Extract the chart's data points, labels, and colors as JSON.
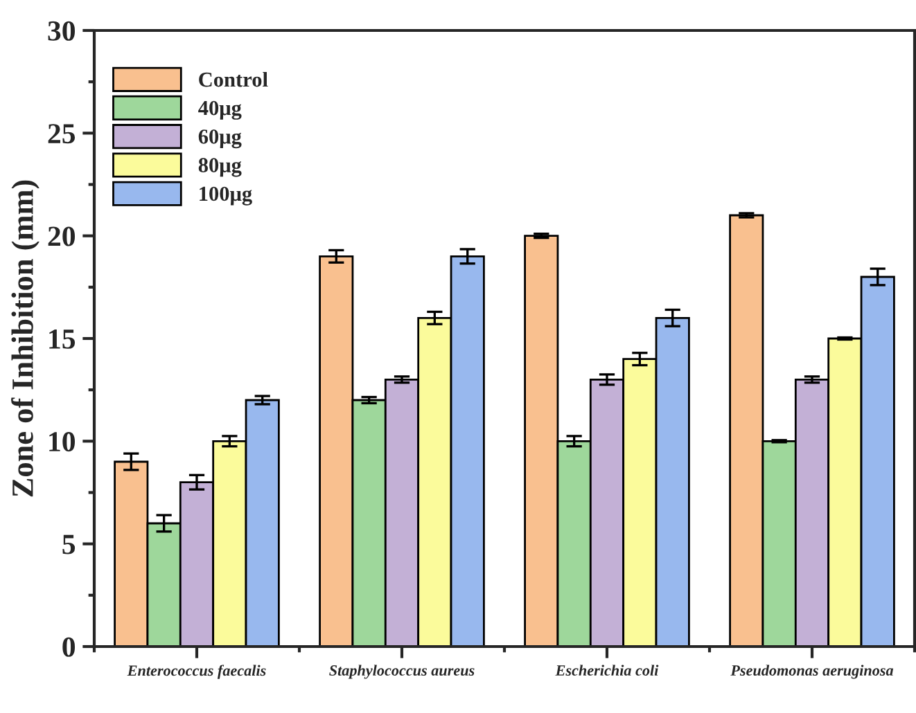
{
  "chart_data": {
    "type": "bar",
    "ylabel": "Zone of Inhibition (mm)",
    "categories": [
      "Enterococcus faecalis",
      "Staphylococcus aureus",
      "Escherichia coli",
      "Pseudomonas aeruginosa"
    ],
    "series": [
      {
        "name": "Control",
        "color": "#f9c08f",
        "values": [
          9,
          19,
          20,
          21
        ],
        "errors": [
          0.4,
          0.3,
          0.1,
          0.1
        ]
      },
      {
        "name": "40μg",
        "color": "#9ed79b",
        "values": [
          6,
          12,
          10,
          10
        ],
        "errors": [
          0.4,
          0.15,
          0.25,
          0.05
        ]
      },
      {
        "name": "60μg",
        "color": "#c3b0d6",
        "values": [
          8,
          13,
          13,
          13
        ],
        "errors": [
          0.35,
          0.15,
          0.25,
          0.15
        ]
      },
      {
        "name": "80μg",
        "color": "#fbfb9b",
        "values": [
          10,
          16,
          14,
          15
        ],
        "errors": [
          0.25,
          0.3,
          0.3,
          0.05
        ]
      },
      {
        "name": "100μg",
        "color": "#98b8ee",
        "values": [
          12,
          19,
          16,
          18
        ],
        "errors": [
          0.2,
          0.35,
          0.4,
          0.4
        ]
      }
    ],
    "ylim": [
      0,
      30
    ],
    "yticks": [
      0,
      5,
      10,
      15,
      20,
      25,
      30
    ],
    "grid": false,
    "legend": "top left"
  }
}
